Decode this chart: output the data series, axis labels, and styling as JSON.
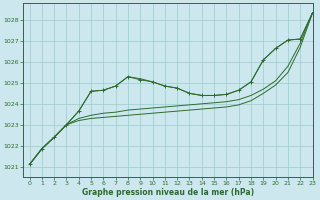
{
  "xlabel": "Graphe pression niveau de la mer (hPa)",
  "background_color": "#cce8ee",
  "grid_color": "#99cccc",
  "line_color": "#2d6b2d",
  "xlim": [
    -0.5,
    23
  ],
  "ylim": [
    1020.5,
    1028.8
  ],
  "yticks": [
    1021,
    1022,
    1023,
    1024,
    1025,
    1026,
    1027,
    1028
  ],
  "xticks": [
    0,
    1,
    2,
    3,
    4,
    5,
    6,
    7,
    8,
    9,
    10,
    11,
    12,
    13,
    14,
    15,
    16,
    17,
    18,
    19,
    20,
    21,
    22,
    23
  ],
  "lines": [
    {
      "y": [
        1021.1,
        1021.85,
        1022.4,
        1023.0,
        1023.65,
        1024.6,
        1024.65,
        1024.85,
        1025.3,
        1025.15,
        1025.05,
        1024.85,
        1024.75,
        1024.5,
        1024.4,
        1024.4,
        1024.45,
        1024.65,
        1025.05,
        1026.1,
        1026.65,
        1027.05,
        1027.1,
        1028.35
      ],
      "marker": true
    },
    {
      "y": [
        1021.1,
        1021.85,
        1022.4,
        1023.0,
        1023.3,
        1023.45,
        1023.55,
        1023.6,
        1023.7,
        1023.75,
        1023.8,
        1023.85,
        1023.9,
        1023.95,
        1024.0,
        1024.05,
        1024.1,
        1024.2,
        1024.4,
        1024.7,
        1025.1,
        1025.8,
        1026.9,
        1028.35
      ],
      "marker": false
    },
    {
      "y": [
        1021.1,
        1021.85,
        1022.4,
        1023.0,
        1023.2,
        1023.3,
        1023.35,
        1023.4,
        1023.45,
        1023.5,
        1023.55,
        1023.6,
        1023.65,
        1023.7,
        1023.75,
        1023.8,
        1023.85,
        1023.95,
        1024.15,
        1024.5,
        1024.9,
        1025.5,
        1026.7,
        1028.35
      ],
      "marker": false
    },
    {
      "y": [
        1021.1,
        1021.85,
        1022.4,
        1023.0,
        1023.65,
        1024.6,
        1024.65,
        1024.85,
        1025.3,
        1025.2,
        1025.05,
        1024.85,
        1024.75,
        1024.5,
        1024.4,
        1024.4,
        1024.45,
        1024.65,
        1025.05,
        1026.1,
        1026.65,
        1027.05,
        1027.1,
        1028.35
      ],
      "marker": false
    }
  ]
}
